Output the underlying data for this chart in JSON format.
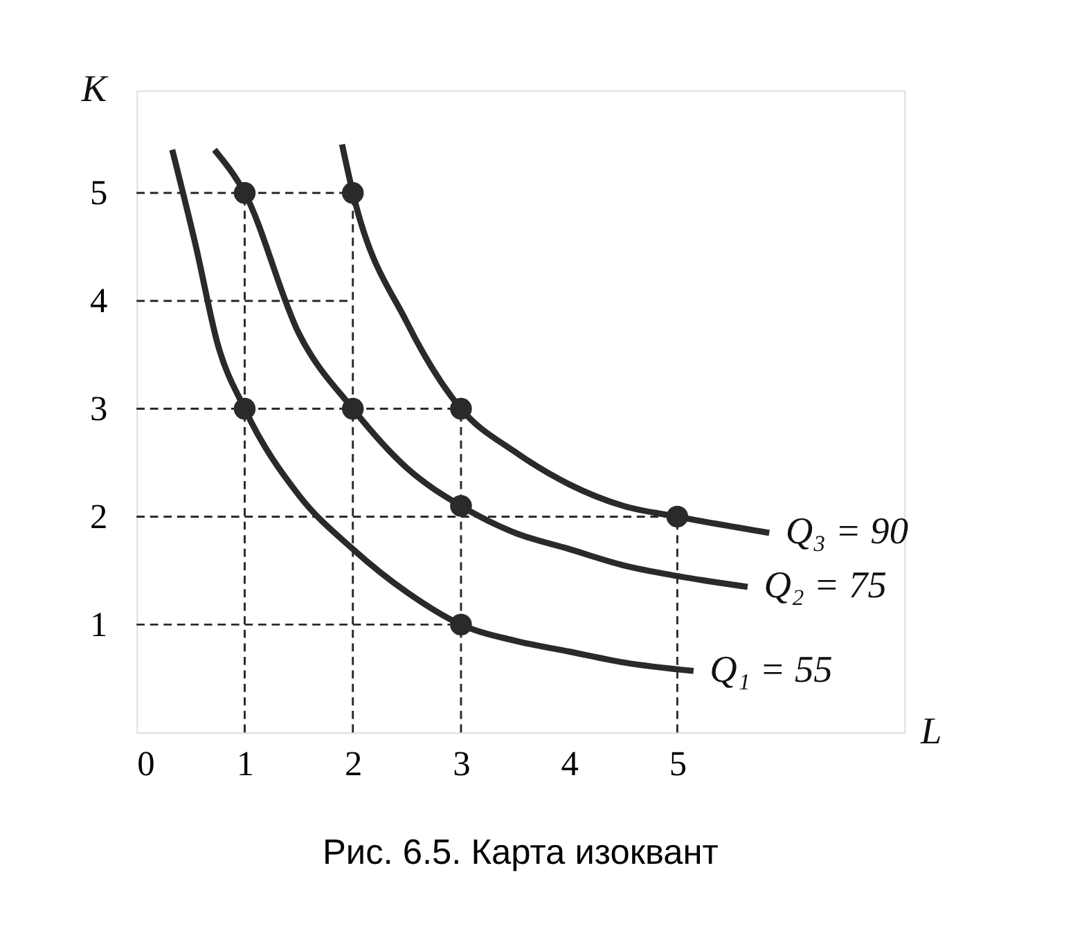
{
  "chart_data": {
    "type": "line",
    "xlabel": "L",
    "ylabel": "K",
    "xlim": [
      0,
      7.1
    ],
    "ylim": [
      0,
      5.95
    ],
    "xticks": [
      0,
      1,
      2,
      3,
      4,
      5
    ],
    "yticks": [
      1,
      2,
      3,
      4,
      5
    ],
    "grid": false,
    "annotations": [
      "Рис. 6.5. Карта изоквант"
    ],
    "series": [
      {
        "name": "Q₁ = 55",
        "color": "#2a2a2a",
        "line_style": "solid",
        "x": [
          0.33,
          0.55,
          0.75,
          1,
          1.5,
          2,
          2.5,
          3,
          3.5,
          4,
          4.5,
          5.15
        ],
        "values": [
          5.4,
          4.5,
          3.6,
          3,
          2.2,
          1.7,
          1.3,
          1,
          0.85,
          0.75,
          0.65,
          0.57
        ]
      },
      {
        "name": "Q₂ = 75",
        "color": "#2a2a2a",
        "line_style": "solid",
        "x": [
          0.72,
          1,
          1.5,
          2,
          2.5,
          3,
          3.5,
          4,
          4.5,
          5,
          5.65
        ],
        "values": [
          5.4,
          5,
          3.7,
          3,
          2.45,
          2.1,
          1.85,
          1.7,
          1.55,
          1.45,
          1.35
        ]
      },
      {
        "name": "Q₃ = 90",
        "color": "#2a2a2a",
        "line_style": "solid",
        "x": [
          1.9,
          2,
          2.5,
          3,
          3.5,
          4,
          4.5,
          5,
          5.85
        ],
        "values": [
          5.45,
          5,
          3.8,
          3,
          2.6,
          2.3,
          2.1,
          2,
          1.85
        ]
      },
      {
        "type": "line",
        "color": "#2a2a2a",
        "line_style": "dashed",
        "x": [
          1,
          1
        ],
        "values": [
          0,
          5
        ]
      },
      {
        "type": "line",
        "color": "#2a2a2a",
        "line_style": "dashed",
        "x": [
          2,
          2
        ],
        "values": [
          0,
          5
        ]
      },
      {
        "type": "line",
        "color": "#2a2a2a",
        "line_style": "dashed",
        "x": [
          3,
          3
        ],
        "values": [
          0,
          3
        ]
      },
      {
        "type": "line",
        "color": "#2a2a2a",
        "line_style": "dashed",
        "x": [
          5,
          5
        ],
        "values": [
          0,
          2
        ]
      },
      {
        "type": "line",
        "color": "#2a2a2a",
        "line_style": "dashed",
        "x": [
          0,
          2
        ],
        "values": [
          5,
          5
        ]
      },
      {
        "type": "line",
        "color": "#2a2a2a",
        "line_style": "dashed",
        "x": [
          0,
          2
        ],
        "values": [
          4,
          4
        ]
      },
      {
        "type": "line",
        "color": "#2a2a2a",
        "line_style": "dashed",
        "x": [
          0,
          3
        ],
        "values": [
          3,
          3
        ]
      },
      {
        "type": "line",
        "color": "#2a2a2a",
        "line_style": "dashed",
        "x": [
          0,
          5
        ],
        "values": [
          2,
          2
        ]
      },
      {
        "type": "line",
        "color": "#2a2a2a",
        "line_style": "dashed",
        "x": [
          0,
          3
        ],
        "values": [
          1,
          1
        ]
      },
      {
        "type": "scatter",
        "color": "#2a2a2a",
        "marker": "circle",
        "x": [
          1,
          3,
          1,
          2,
          3,
          2,
          3,
          5
        ],
        "values": [
          3,
          1,
          5,
          3,
          2.1,
          5,
          3,
          2
        ]
      }
    ]
  }
}
